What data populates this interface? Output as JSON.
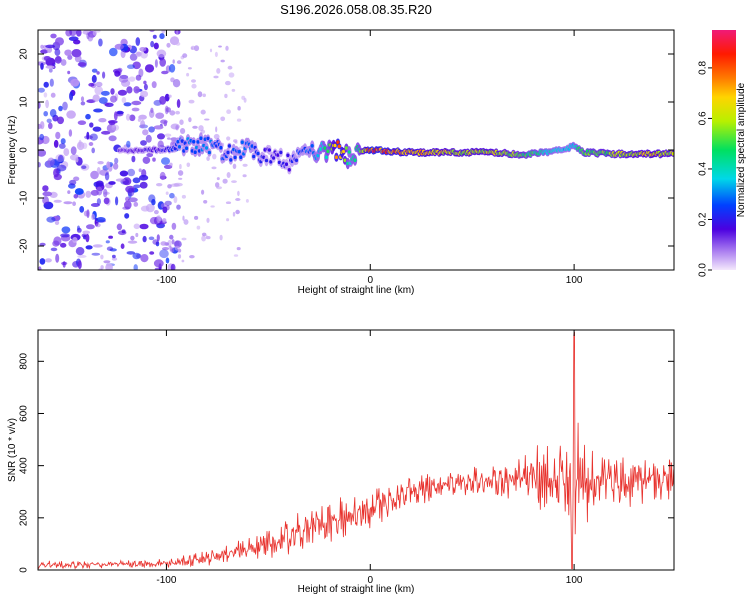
{
  "title": "S196.2026.058.08.35.R20",
  "chart_data": [
    {
      "type": "heatmap",
      "name": "spectrogram",
      "xlabel": "Height of straight line (km)",
      "ylabel": "Frequency (Hz)",
      "xlim": [
        -163,
        149
      ],
      "ylim": [
        -25,
        25
      ],
      "xticks": [
        -100,
        0,
        100
      ],
      "yticks": [
        -20,
        -10,
        0,
        10,
        20
      ],
      "xtick_labels": [
        "-100",
        "0",
        "100"
      ],
      "ytick_labels": [
        "-20",
        "-10",
        "0",
        "10",
        "20"
      ],
      "colorbar": {
        "label": "Normalized spectral amplitude",
        "range": [
          0,
          0.95
        ],
        "ticks": [
          0.0,
          0.2,
          0.4,
          0.6,
          0.8
        ],
        "tick_labels": [
          "0.0",
          "0.2",
          "0.4",
          "0.6",
          "0.8"
        ]
      },
      "signal_band": [
        {
          "x": -120,
          "f": 0.0,
          "amp": 0.15
        },
        {
          "x": -100,
          "f": 0.0,
          "amp": 0.2
        },
        {
          "x": -90,
          "f": 0.8,
          "amp": 0.3
        },
        {
          "x": -80,
          "f": 1.5,
          "amp": 0.3
        },
        {
          "x": -70,
          "f": -1.0,
          "amp": 0.25
        },
        {
          "x": -60,
          "f": 0.5,
          "amp": 0.3
        },
        {
          "x": -50,
          "f": -1.5,
          "amp": 0.2
        },
        {
          "x": -40,
          "f": -2.5,
          "amp": 0.2
        },
        {
          "x": -30,
          "f": -1.0,
          "amp": 0.3
        },
        {
          "x": -20,
          "f": 0.0,
          "amp": 0.5
        },
        {
          "x": -15,
          "f": 0.2,
          "amp": 0.9
        },
        {
          "x": -10,
          "f": -1.5,
          "amp": 0.4
        },
        {
          "x": -5,
          "f": -0.5,
          "amp": 0.5
        },
        {
          "x": 0,
          "f": 0.0,
          "amp": 0.92
        },
        {
          "x": 10,
          "f": -0.3,
          "amp": 0.8
        },
        {
          "x": 20,
          "f": -0.5,
          "amp": 0.75
        },
        {
          "x": 40,
          "f": -0.5,
          "amp": 0.65
        },
        {
          "x": 60,
          "f": -0.5,
          "amp": 0.65
        },
        {
          "x": 75,
          "f": -1.0,
          "amp": 0.55
        },
        {
          "x": 85,
          "f": -0.5,
          "amp": 0.45
        },
        {
          "x": 95,
          "f": 0.0,
          "amp": 0.35
        },
        {
          "x": 100,
          "f": 1.0,
          "amp": 0.4
        },
        {
          "x": 105,
          "f": -0.5,
          "amp": 0.55
        },
        {
          "x": 120,
          "f": -0.8,
          "amp": 0.6
        },
        {
          "x": 140,
          "f": -0.8,
          "amp": 0.7
        },
        {
          "x": 149,
          "f": -0.8,
          "amp": 0.6
        }
      ],
      "noise_region": {
        "x_start": -163,
        "x_end": -100,
        "amp": 0.25
      }
    },
    {
      "type": "line",
      "name": "snr",
      "xlabel": "Height of straight line (km)",
      "ylabel": "SNR (10 * v/v)",
      "xlim": [
        -163,
        149
      ],
      "ylim": [
        0,
        920
      ],
      "xticks": [
        -100,
        0,
        100
      ],
      "yticks": [
        0,
        200,
        400,
        600,
        800
      ],
      "xtick_labels": [
        "-100",
        "0",
        "100"
      ],
      "ytick_labels": [
        "0",
        "200",
        "400",
        "600",
        "800"
      ],
      "color": "#e8322d",
      "series": [
        {
          "name": "SNR",
          "x": [
            -163,
            -140,
            -120,
            -100,
            -90,
            -80,
            -70,
            -60,
            -50,
            -40,
            -30,
            -20,
            -10,
            0,
            10,
            20,
            30,
            40,
            50,
            60,
            70,
            80,
            85,
            90,
            95,
            100,
            105,
            110,
            120,
            130,
            140,
            149
          ],
          "y": [
            20,
            20,
            22,
            25,
            35,
            45,
            60,
            80,
            100,
            130,
            165,
            190,
            210,
            230,
            260,
            300,
            320,
            335,
            340,
            345,
            345,
            350,
            360,
            340,
            330,
            320,
            340,
            345,
            340,
            340,
            345,
            350
          ],
          "spread": [
            15,
            15,
            15,
            18,
            25,
            30,
            40,
            50,
            60,
            70,
            80,
            85,
            85,
            85,
            75,
            65,
            60,
            60,
            60,
            70,
            80,
            110,
            140,
            170,
            240,
            300,
            200,
            110,
            100,
            100,
            100,
            90
          ]
        }
      ]
    }
  ]
}
